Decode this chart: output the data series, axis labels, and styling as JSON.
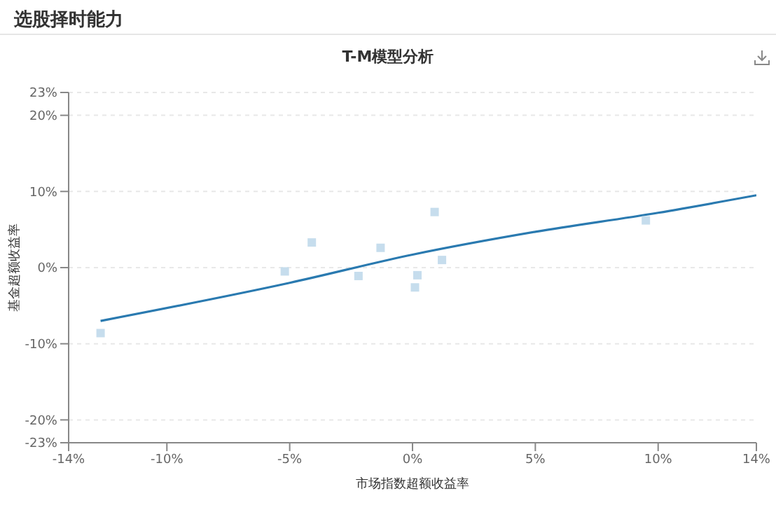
{
  "chart_data": {
    "type": "scatter",
    "title": "选股择时能力",
    "subtitle": "T-M模型分析",
    "xlabel": "市场指数超额收益率",
    "ylabel": "基金超额收益率",
    "series": [
      {
        "color": "#c6dded",
        "x": [
          -12.7,
          -5.2,
          -4.1,
          -2.2,
          -1.3,
          0.9,
          1.2,
          0.2,
          0.1,
          9.5
        ],
        "values": [
          -8.6,
          -0.5,
          3.3,
          -1.1,
          2.6,
          7.3,
          1.0,
          -1.0,
          -2.6,
          6.2
        ]
      },
      {
        "type": "line",
        "marker": "none",
        "color": "#2a7ab0",
        "x": [
          -12.7,
          -5,
          0,
          5,
          10,
          14
        ],
        "values": [
          -7.0,
          -2.0,
          1.7,
          4.7,
          7.2,
          9.5
        ]
      }
    ],
    "xlim": [
      -14,
      14
    ],
    "xticks": [
      {
        "value": -14,
        "label": "-14%"
      },
      {
        "value": -10,
        "label": "-10%"
      },
      {
        "value": -5,
        "label": "-5%"
      },
      {
        "value": 0,
        "label": "0%"
      },
      {
        "value": 5,
        "label": "5%"
      },
      {
        "value": 10,
        "label": "10%"
      },
      {
        "value": 14,
        "label": "14%"
      }
    ],
    "ylim": [
      -23,
      23
    ],
    "yticks": [
      {
        "value": -23,
        "label": "-23%"
      },
      {
        "value": -20,
        "label": "-20%"
      },
      {
        "value": -10,
        "label": "-10%"
      },
      {
        "value": 0,
        "label": "0%"
      },
      {
        "value": 10,
        "label": "10%"
      },
      {
        "value": 20,
        "label": "20%"
      },
      {
        "value": 23,
        "label": "23%"
      }
    ],
    "grid": "y",
    "marker": "square",
    "line_style": "solid"
  }
}
